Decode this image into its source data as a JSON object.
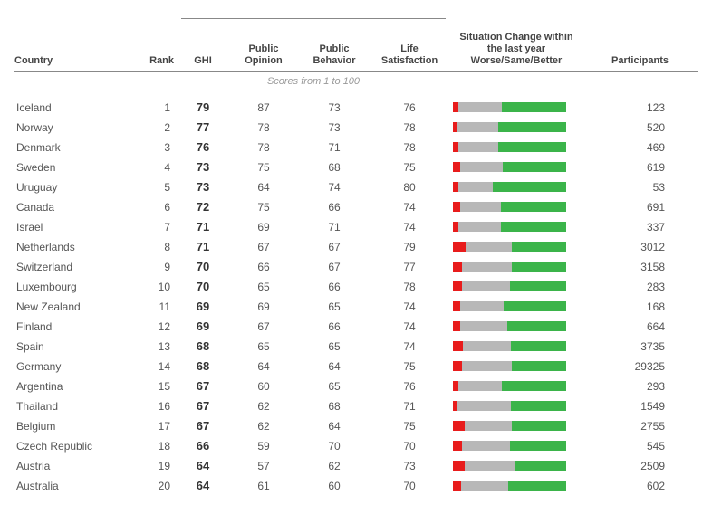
{
  "columns": {
    "country": "Country",
    "rank": "Rank",
    "ghi": "GHI",
    "opinion": "Public Opinion",
    "behavior": "Public Behavior",
    "life": "Life Satisfaction",
    "change": "Situation Change within the last year Worse/Same/Better",
    "participants": "Participants"
  },
  "score_note": "Scores from 1 to 100",
  "bar_colors": {
    "worse": "#e81c1c",
    "same": "#b8b8b8",
    "better": "#3bb44a"
  },
  "text_colors": {
    "body": "#555555",
    "ghi": "#333333",
    "note": "#999999",
    "header": "#444444"
  },
  "rows": [
    {
      "country": "Iceland",
      "rank": 1,
      "ghi": 79,
      "opinion": 87,
      "behavior": 73,
      "life": 76,
      "worse": 5,
      "same": 38,
      "better": 57,
      "participants": 123
    },
    {
      "country": "Norway",
      "rank": 2,
      "ghi": 77,
      "opinion": 78,
      "behavior": 73,
      "life": 78,
      "worse": 4,
      "same": 36,
      "better": 60,
      "participants": 520
    },
    {
      "country": "Denmark",
      "rank": 3,
      "ghi": 76,
      "opinion": 78,
      "behavior": 71,
      "life": 78,
      "worse": 5,
      "same": 35,
      "better": 60,
      "participants": 469
    },
    {
      "country": "Sweden",
      "rank": 4,
      "ghi": 73,
      "opinion": 75,
      "behavior": 68,
      "life": 75,
      "worse": 6,
      "same": 38,
      "better": 56,
      "participants": 619
    },
    {
      "country": "Uruguay",
      "rank": 5,
      "ghi": 73,
      "opinion": 64,
      "behavior": 74,
      "life": 80,
      "worse": 5,
      "same": 30,
      "better": 65,
      "participants": 53
    },
    {
      "country": "Canada",
      "rank": 6,
      "ghi": 72,
      "opinion": 75,
      "behavior": 66,
      "life": 74,
      "worse": 6,
      "same": 36,
      "better": 58,
      "participants": 691
    },
    {
      "country": "Israel",
      "rank": 7,
      "ghi": 71,
      "opinion": 69,
      "behavior": 71,
      "life": 74,
      "worse": 5,
      "same": 37,
      "better": 58,
      "participants": 337
    },
    {
      "country": "Netherlands",
      "rank": 8,
      "ghi": 71,
      "opinion": 67,
      "behavior": 67,
      "life": 79,
      "worse": 11,
      "same": 41,
      "better": 48,
      "participants": 3012
    },
    {
      "country": "Switzerland",
      "rank": 9,
      "ghi": 70,
      "opinion": 66,
      "behavior": 67,
      "life": 77,
      "worse": 8,
      "same": 44,
      "better": 48,
      "participants": 3158
    },
    {
      "country": "Luxembourg",
      "rank": 10,
      "ghi": 70,
      "opinion": 65,
      "behavior": 66,
      "life": 78,
      "worse": 8,
      "same": 42,
      "better": 50,
      "participants": 283
    },
    {
      "country": "New Zealand",
      "rank": 11,
      "ghi": 69,
      "opinion": 69,
      "behavior": 65,
      "life": 74,
      "worse": 6,
      "same": 39,
      "better": 55,
      "participants": 168
    },
    {
      "country": "Finland",
      "rank": 12,
      "ghi": 69,
      "opinion": 67,
      "behavior": 66,
      "life": 74,
      "worse": 6,
      "same": 42,
      "better": 52,
      "participants": 664
    },
    {
      "country": "Spain",
      "rank": 13,
      "ghi": 68,
      "opinion": 65,
      "behavior": 65,
      "life": 74,
      "worse": 9,
      "same": 42,
      "better": 49,
      "participants": 3735
    },
    {
      "country": "Germany",
      "rank": 14,
      "ghi": 68,
      "opinion": 64,
      "behavior": 64,
      "life": 75,
      "worse": 8,
      "same": 44,
      "better": 48,
      "participants": 29325
    },
    {
      "country": "Argentina",
      "rank": 15,
      "ghi": 67,
      "opinion": 60,
      "behavior": 65,
      "life": 76,
      "worse": 5,
      "same": 38,
      "better": 57,
      "participants": 293
    },
    {
      "country": "Thailand",
      "rank": 16,
      "ghi": 67,
      "opinion": 62,
      "behavior": 68,
      "life": 71,
      "worse": 4,
      "same": 47,
      "better": 49,
      "participants": 1549
    },
    {
      "country": "Belgium",
      "rank": 17,
      "ghi": 67,
      "opinion": 62,
      "behavior": 64,
      "life": 75,
      "worse": 10,
      "same": 42,
      "better": 48,
      "participants": 2755
    },
    {
      "country": "Czech Republic",
      "rank": 18,
      "ghi": 66,
      "opinion": 59,
      "behavior": 70,
      "life": 70,
      "worse": 8,
      "same": 42,
      "better": 50,
      "participants": 545
    },
    {
      "country": "Austria",
      "rank": 19,
      "ghi": 64,
      "opinion": 57,
      "behavior": 62,
      "life": 73,
      "worse": 10,
      "same": 44,
      "better": 46,
      "participants": 2509
    },
    {
      "country": "Australia",
      "rank": 20,
      "ghi": 64,
      "opinion": 61,
      "behavior": 60,
      "life": 70,
      "worse": 7,
      "same": 42,
      "better": 51,
      "participants": 602
    }
  ]
}
